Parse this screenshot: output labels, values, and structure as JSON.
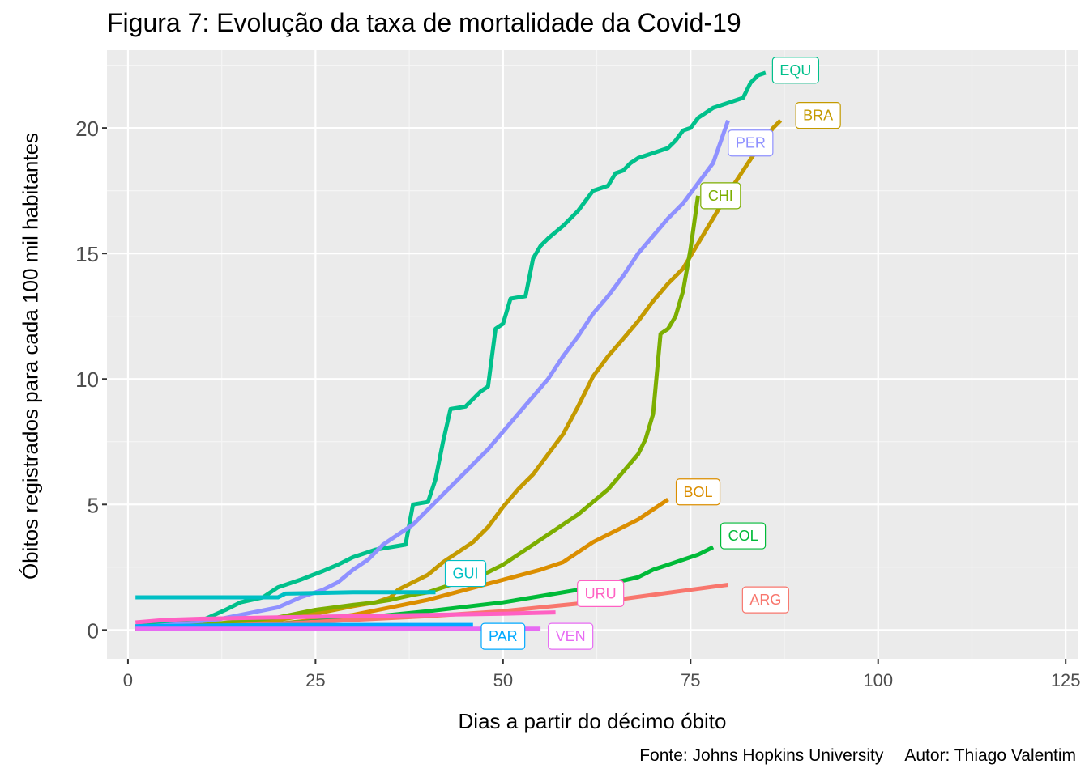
{
  "chart_data": {
    "type": "line",
    "title": "Figura 7: Evolução da taxa de mortalidade da Covid-19",
    "xlabel": "Dias a partir do décimo óbito",
    "ylabel": "Óbitos registrados para cada 100 mil habitantes",
    "caption_source": "Fonte: Johns Hopkins University",
    "caption_author": "Autor: Thiago Valentim",
    "xlim": [
      -2.8,
      126.6
    ],
    "ylim": [
      -1.15,
      23.1
    ],
    "x_ticks": [
      0,
      25,
      50,
      75,
      100,
      125
    ],
    "y_ticks": [
      0,
      5,
      10,
      15,
      20
    ],
    "grid": true,
    "background": "#ebebeb",
    "series": [
      {
        "name": "EQU",
        "color": "#00c08b",
        "label_x": 89,
        "label_y": 22.3,
        "x": [
          1,
          5,
          8,
          10,
          13,
          15,
          18,
          20,
          23,
          26,
          28,
          30,
          33,
          35,
          36,
          37,
          38,
          39,
          40,
          41,
          42,
          43,
          44,
          45,
          46,
          47,
          48,
          49,
          50,
          51,
          52,
          53,
          54,
          55,
          56,
          58,
          60,
          62,
          63,
          64,
          65,
          66,
          67,
          68,
          69,
          70,
          71,
          72,
          73,
          74,
          75,
          76,
          77,
          78,
          79,
          80,
          81,
          82,
          83,
          84,
          85
        ],
        "y": [
          0.15,
          0.25,
          0.3,
          0.4,
          0.8,
          1.1,
          1.3,
          1.7,
          2.0,
          2.35,
          2.6,
          2.9,
          3.2,
          3.3,
          3.35,
          3.4,
          5.0,
          5.05,
          5.1,
          6.0,
          7.5,
          8.8,
          8.85,
          8.9,
          9.2,
          9.5,
          9.7,
          12.0,
          12.2,
          13.2,
          13.25,
          13.3,
          14.8,
          15.3,
          15.6,
          16.1,
          16.7,
          17.5,
          17.6,
          17.7,
          18.2,
          18.3,
          18.6,
          18.8,
          18.9,
          19.0,
          19.1,
          19.2,
          19.5,
          19.9,
          20.0,
          20.4,
          20.6,
          20.8,
          20.9,
          21.0,
          21.1,
          21.2,
          21.8,
          22.1,
          22.2
        ]
      },
      {
        "name": "BRA",
        "color": "#c49a00",
        "label_x": 92,
        "label_y": 20.5,
        "x": [
          1,
          10,
          20,
          25,
          30,
          33,
          35,
          36,
          38,
          40,
          42,
          44,
          46,
          48,
          50,
          52,
          54,
          56,
          58,
          60,
          62,
          64,
          66,
          68,
          70,
          72,
          74,
          76,
          78,
          80,
          82,
          84,
          86,
          87
        ],
        "y": [
          0.05,
          0.15,
          0.4,
          0.65,
          0.95,
          1.1,
          1.3,
          1.6,
          1.9,
          2.2,
          2.7,
          3.1,
          3.5,
          4.1,
          4.9,
          5.6,
          6.2,
          7.0,
          7.8,
          8.9,
          10.1,
          10.9,
          11.6,
          12.3,
          13.1,
          13.8,
          14.4,
          15.4,
          16.4,
          17.4,
          18.3,
          19.2,
          20.0,
          20.3
        ]
      },
      {
        "name": "PER",
        "color": "#8f91ff",
        "label_x": 83,
        "label_y": 19.4,
        "x": [
          1,
          10,
          15,
          20,
          23,
          26,
          28,
          30,
          32,
          34,
          36,
          38,
          40,
          42,
          44,
          46,
          48,
          50,
          52,
          54,
          56,
          58,
          60,
          62,
          64,
          66,
          68,
          70,
          72,
          74,
          76,
          78,
          80
        ],
        "y": [
          0.1,
          0.3,
          0.6,
          0.9,
          1.3,
          1.6,
          1.9,
          2.4,
          2.8,
          3.4,
          3.8,
          4.2,
          4.8,
          5.4,
          6.0,
          6.6,
          7.2,
          7.9,
          8.6,
          9.3,
          10.0,
          10.9,
          11.7,
          12.6,
          13.3,
          14.1,
          15.0,
          15.7,
          16.4,
          17.0,
          17.8,
          18.6,
          20.3
        ]
      },
      {
        "name": "CHI",
        "color": "#7cae00",
        "label_x": 79,
        "label_y": 17.3,
        "x": [
          1,
          10,
          20,
          25,
          30,
          33,
          35,
          38,
          40,
          42,
          44,
          46,
          48,
          50,
          52,
          54,
          56,
          58,
          60,
          62,
          64,
          66,
          68,
          69,
          70,
          71,
          72,
          73,
          74,
          75,
          76
        ],
        "y": [
          0.05,
          0.2,
          0.5,
          0.8,
          1.0,
          1.1,
          1.2,
          1.4,
          1.5,
          1.7,
          1.9,
          2.1,
          2.3,
          2.6,
          3.0,
          3.4,
          3.8,
          4.2,
          4.6,
          5.1,
          5.6,
          6.3,
          7.0,
          7.6,
          8.6,
          11.8,
          12.0,
          12.5,
          13.5,
          15.2,
          17.3
        ]
      },
      {
        "name": "BOL",
        "color": "#db8e00",
        "label_x": 76,
        "label_y": 5.5,
        "x": [
          1,
          10,
          20,
          25,
          30,
          35,
          40,
          45,
          50,
          55,
          58,
          60,
          62,
          64,
          66,
          68,
          70,
          72
        ],
        "y": [
          0.05,
          0.1,
          0.25,
          0.4,
          0.6,
          0.9,
          1.2,
          1.6,
          2.0,
          2.4,
          2.7,
          3.1,
          3.5,
          3.8,
          4.1,
          4.4,
          4.8,
          5.2
        ]
      },
      {
        "name": "COL",
        "color": "#00ba38",
        "label_x": 82,
        "label_y": 3.75,
        "x": [
          1,
          10,
          20,
          30,
          40,
          50,
          55,
          60,
          65,
          68,
          70,
          72,
          74,
          76,
          78
        ],
        "y": [
          0.05,
          0.1,
          0.25,
          0.45,
          0.75,
          1.1,
          1.35,
          1.6,
          1.9,
          2.1,
          2.4,
          2.6,
          2.8,
          3.0,
          3.3
        ]
      },
      {
        "name": "ARG",
        "color": "#f8766d",
        "label_x": 85,
        "label_y": 1.2,
        "x": [
          1,
          10,
          20,
          30,
          40,
          50,
          55,
          60,
          65,
          70,
          75,
          80
        ],
        "y": [
          0.05,
          0.15,
          0.25,
          0.4,
          0.55,
          0.75,
          0.9,
          1.05,
          1.2,
          1.4,
          1.6,
          1.8
        ]
      },
      {
        "name": "URU",
        "color": "#ff61c3",
        "label_x": 63,
        "label_y": 1.45,
        "x": [
          1,
          5,
          10,
          20,
          30,
          40,
          50,
          57
        ],
        "y": [
          0.3,
          0.4,
          0.45,
          0.5,
          0.55,
          0.6,
          0.65,
          0.7
        ]
      },
      {
        "name": "GUI",
        "color": "#00bfc4",
        "label_x": 45,
        "label_y": 2.25,
        "x": [
          1,
          10,
          20,
          21,
          30,
          41
        ],
        "y": [
          1.3,
          1.3,
          1.3,
          1.45,
          1.5,
          1.5
        ]
      },
      {
        "name": "PAR",
        "color": "#00a9ff",
        "label_x": 50,
        "label_y": -0.25,
        "x": [
          1,
          20,
          40,
          46
        ],
        "y": [
          0.15,
          0.2,
          0.2,
          0.2
        ]
      },
      {
        "name": "VEN",
        "color": "#e76bf3",
        "label_x": 59,
        "label_y": -0.25,
        "x": [
          1,
          20,
          40,
          55
        ],
        "y": [
          0.05,
          0.05,
          0.05,
          0.05
        ]
      }
    ]
  }
}
